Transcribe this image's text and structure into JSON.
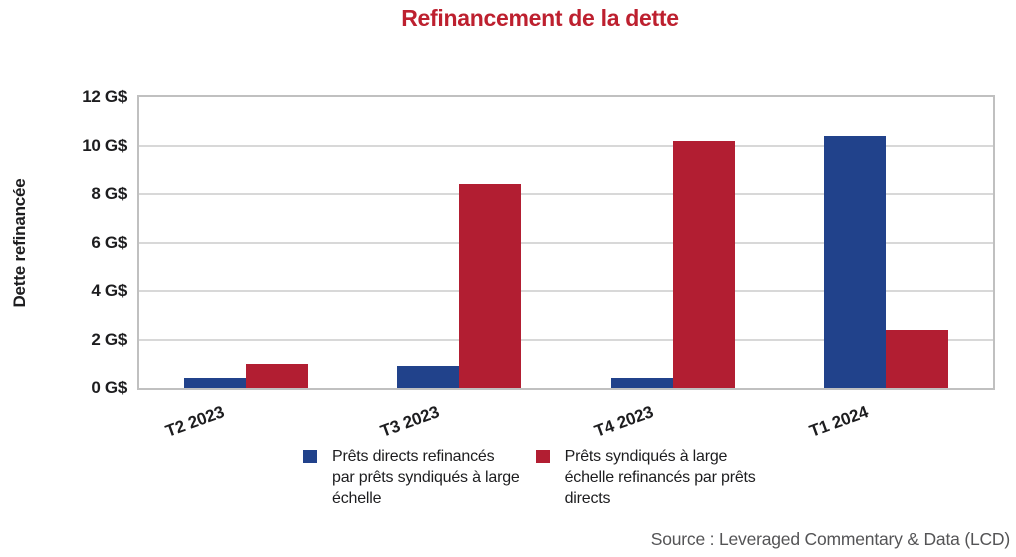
{
  "title": "Refinancement de la dette",
  "source": "Source : Leveraged Commentary & Data (LCD)",
  "chart_data": {
    "type": "bar",
    "title": "Refinancement de la dette",
    "categories": [
      "T2 2023",
      "T3 2023",
      "T4 2023",
      "T1 2024"
    ],
    "series": [
      {
        "name": "Prêts directs refinancés par prêts syndiqués à large échelle",
        "color": "#21428b",
        "values": [
          0.4,
          0.9,
          0.4,
          10.4
        ]
      },
      {
        "name": "Prêts syndiqués à large échelle refinancés par prêts directs",
        "color": "#b21e32",
        "values": [
          1.0,
          8.4,
          10.2,
          2.4
        ]
      }
    ],
    "xlabel": "",
    "ylabel": "Dette refinancée",
    "ylim": [
      0,
      12
    ],
    "ytick_step": 2,
    "ytick_labels": [
      "12 G$",
      "10 G$",
      "8 G$",
      "6 G$",
      "4 G$",
      "2 G$",
      "0 G$"
    ],
    "unit": "G$",
    "grid": true,
    "legend_position": "bottom"
  },
  "legend": {
    "items": [
      {
        "swatch_color": "#21428b",
        "lines": [
          "Prêts directs refinancés",
          "par prêts syndiqués à large",
          "échelle"
        ]
      },
      {
        "swatch_color": "#b21e32",
        "lines": [
          "Prêts syndiqués à large",
          "échelle refinancés par prêts",
          "directs"
        ]
      }
    ]
  },
  "colors": {
    "title_text": "#bd202f",
    "blue_series": "#21428b",
    "red_series": "#b21e32",
    "grid_line": "#d8d8d8",
    "plot_border": "#c0c0c0",
    "axis_text": "#1d1d1f",
    "source_text": "#545456"
  }
}
